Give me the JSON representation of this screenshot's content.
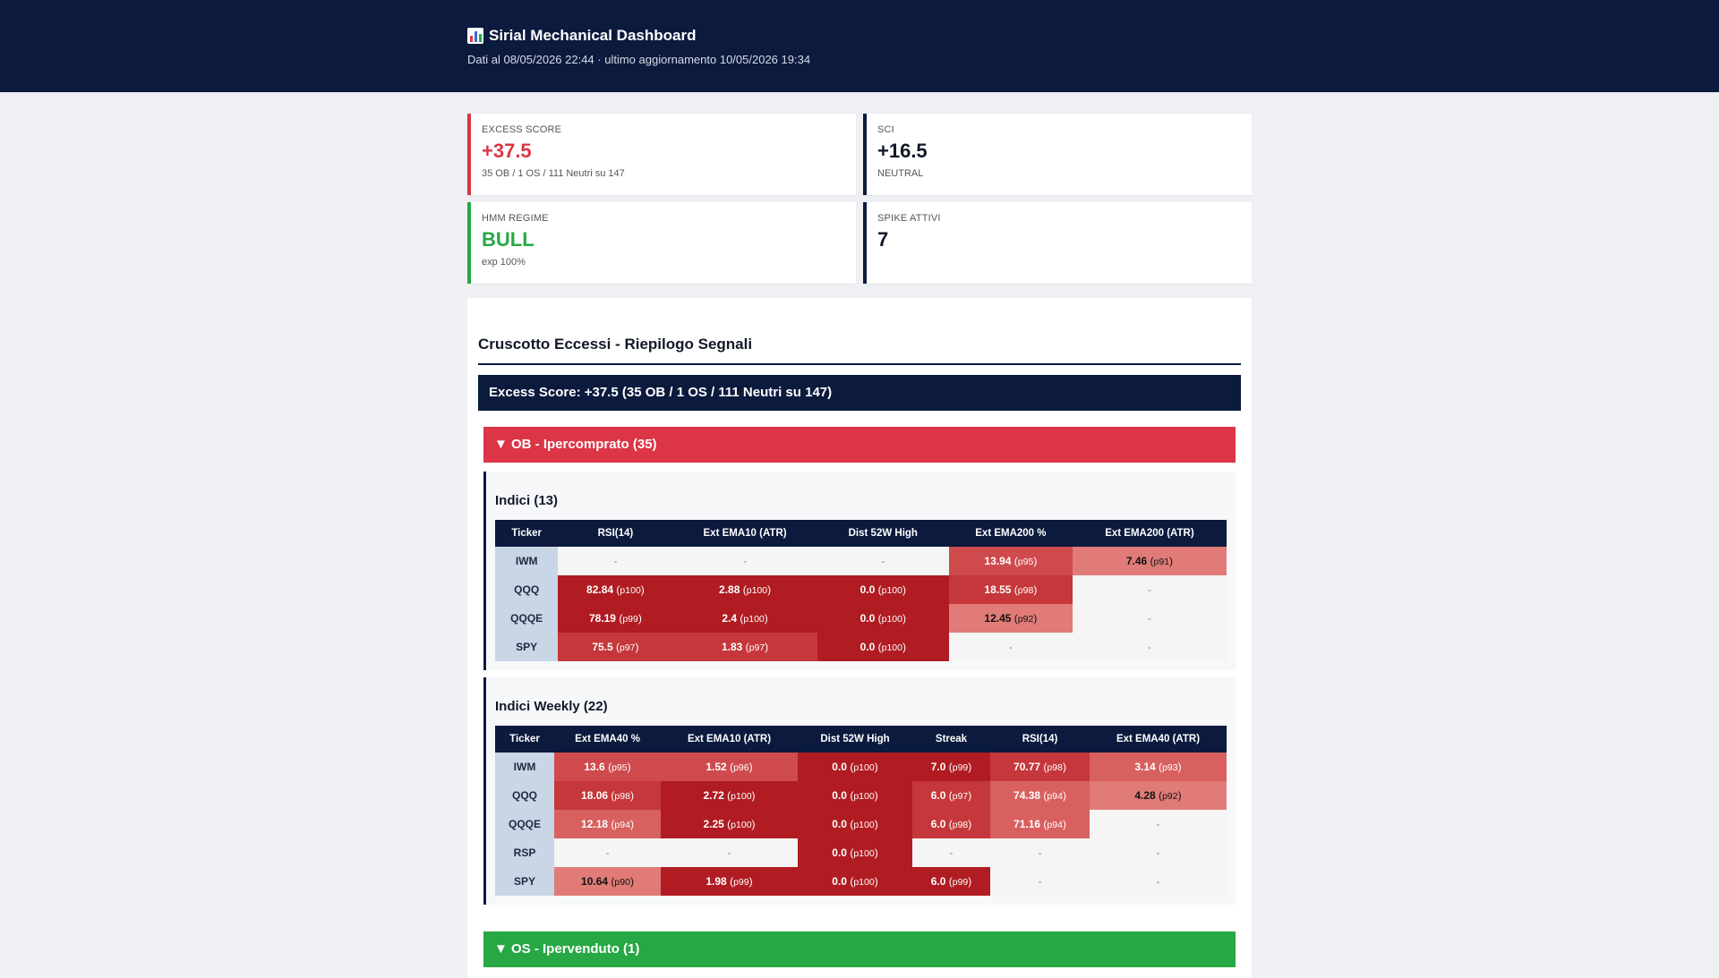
{
  "header": {
    "title": "Sirial Mechanical Dashboard",
    "subtitle": "Dati al 08/05/2026 22:44 · ultimo aggiornamento 10/05/2026 19:34"
  },
  "cards": [
    {
      "label": "EXCESS SCORE",
      "value": "+37.5",
      "note": "35 OB / 1 OS / 111 Neutri su 147",
      "accent": "#dc3545"
    },
    {
      "label": "SCI",
      "value": "+16.5",
      "note": "NEUTRAL",
      "accent": "#0b1a3d"
    },
    {
      "label": "HMM REGIME",
      "value": "BULL",
      "note": "exp 100%",
      "accent": "#28a745"
    },
    {
      "label": "SPIKE ATTIVI",
      "value": "7",
      "note": "",
      "accent": "#0b1a3d"
    }
  ],
  "panel": {
    "title": "Cruscotto Eccessi - Riepilogo Segnali",
    "score_bar": "Excess Score: +37.5 (35 OB / 1 OS / 111 Neutri su 147)",
    "ob_header": "▼ OB - Ipercomprato (35)",
    "os_header": "▼ OS - Ipervenduto (1)"
  },
  "tables": [
    {
      "title": "Indici (13)",
      "columns": [
        "Ticker",
        "RSI(14)",
        "Ext EMA10 (ATR)",
        "Dist 52W High",
        "Ext EMA200 %",
        "Ext EMA200 (ATR)"
      ],
      "rows": [
        {
          "ticker": "IWM",
          "cells": [
            null,
            null,
            null,
            {
              "v": "13.94",
              "p": "p95"
            },
            {
              "v": "7.46",
              "p": "p91"
            }
          ]
        },
        {
          "ticker": "QQQ",
          "cells": [
            {
              "v": "82.84",
              "p": "p100"
            },
            {
              "v": "2.88",
              "p": "p100"
            },
            {
              "v": "0.0",
              "p": "p100"
            },
            {
              "v": "18.55",
              "p": "p98"
            },
            null
          ]
        },
        {
          "ticker": "QQQE",
          "cells": [
            {
              "v": "78.19",
              "p": "p99"
            },
            {
              "v": "2.4",
              "p": "p100"
            },
            {
              "v": "0.0",
              "p": "p100"
            },
            {
              "v": "12.45",
              "p": "p92"
            },
            null
          ]
        },
        {
          "ticker": "SPY",
          "cells": [
            {
              "v": "75.5",
              "p": "p97"
            },
            {
              "v": "1.83",
              "p": "p97"
            },
            {
              "v": "0.0",
              "p": "p100"
            },
            null,
            null
          ]
        }
      ]
    },
    {
      "title": "Indici Weekly (22)",
      "columns": [
        "Ticker",
        "Ext EMA40 %",
        "Ext EMA10 (ATR)",
        "Dist 52W High",
        "Streak",
        "RSI(14)",
        "Ext EMA40 (ATR)"
      ],
      "rows": [
        {
          "ticker": "IWM",
          "cells": [
            {
              "v": "13.6",
              "p": "p95"
            },
            {
              "v": "1.52",
              "p": "p96"
            },
            {
              "v": "0.0",
              "p": "p100"
            },
            {
              "v": "7.0",
              "p": "p99"
            },
            {
              "v": "70.77",
              "p": "p98"
            },
            {
              "v": "3.14",
              "p": "p93"
            }
          ]
        },
        {
          "ticker": "QQQ",
          "cells": [
            {
              "v": "18.06",
              "p": "p98"
            },
            {
              "v": "2.72",
              "p": "p100"
            },
            {
              "v": "0.0",
              "p": "p100"
            },
            {
              "v": "6.0",
              "p": "p97"
            },
            {
              "v": "74.38",
              "p": "p94"
            },
            {
              "v": "4.28",
              "p": "p92"
            }
          ]
        },
        {
          "ticker": "QQQE",
          "cells": [
            {
              "v": "12.18",
              "p": "p94"
            },
            {
              "v": "2.25",
              "p": "p100"
            },
            {
              "v": "0.0",
              "p": "p100"
            },
            {
              "v": "6.0",
              "p": "p98"
            },
            {
              "v": "71.16",
              "p": "p94"
            },
            null
          ]
        },
        {
          "ticker": "RSP",
          "cells": [
            null,
            null,
            {
              "v": "0.0",
              "p": "p100"
            },
            null,
            null,
            null
          ]
        },
        {
          "ticker": "SPY",
          "cells": [
            {
              "v": "10.64",
              "p": "p90"
            },
            {
              "v": "1.98",
              "p": "p99"
            },
            {
              "v": "0.0",
              "p": "p100"
            },
            {
              "v": "6.0",
              "p": "p99"
            },
            null,
            null
          ]
        }
      ]
    }
  ],
  "colors": {
    "navy": "#0b1a3d",
    "red": "#dc3545",
    "green": "#28a745",
    "ticker_bg": "#c8d6e5"
  }
}
